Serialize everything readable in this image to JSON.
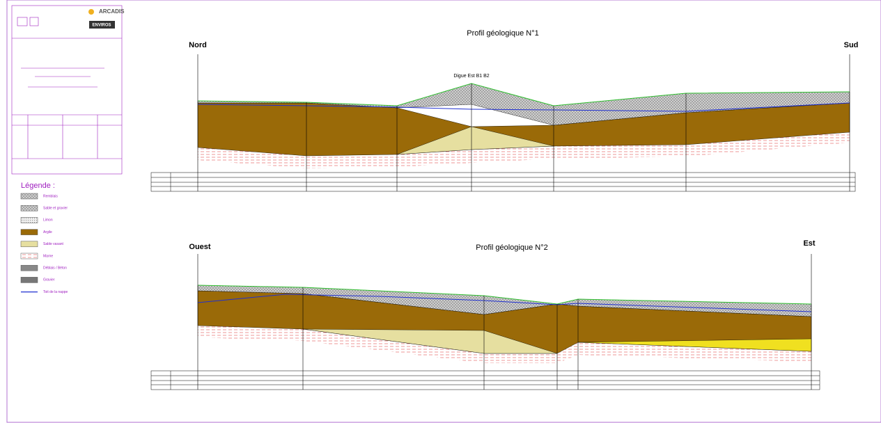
{
  "title_block": {
    "logo1": "ARCADIS",
    "logo2": "ENVIROS"
  },
  "legend": {
    "title": "Légende :",
    "items": [
      "Remblais",
      "Sable et gravier",
      "Limon",
      "Argile",
      "Sable vasant",
      "Marne",
      "Déblais / Béton",
      "Gravier",
      "Toit de la nappe"
    ]
  },
  "profiles": [
    {
      "title": "Profil géologique N°1",
      "left": "Nord",
      "right": "Sud",
      "annotation": "Digue Est B1 B2"
    },
    {
      "title": "Profil géologique N°2",
      "left": "Ouest",
      "right": "Est"
    }
  ]
}
